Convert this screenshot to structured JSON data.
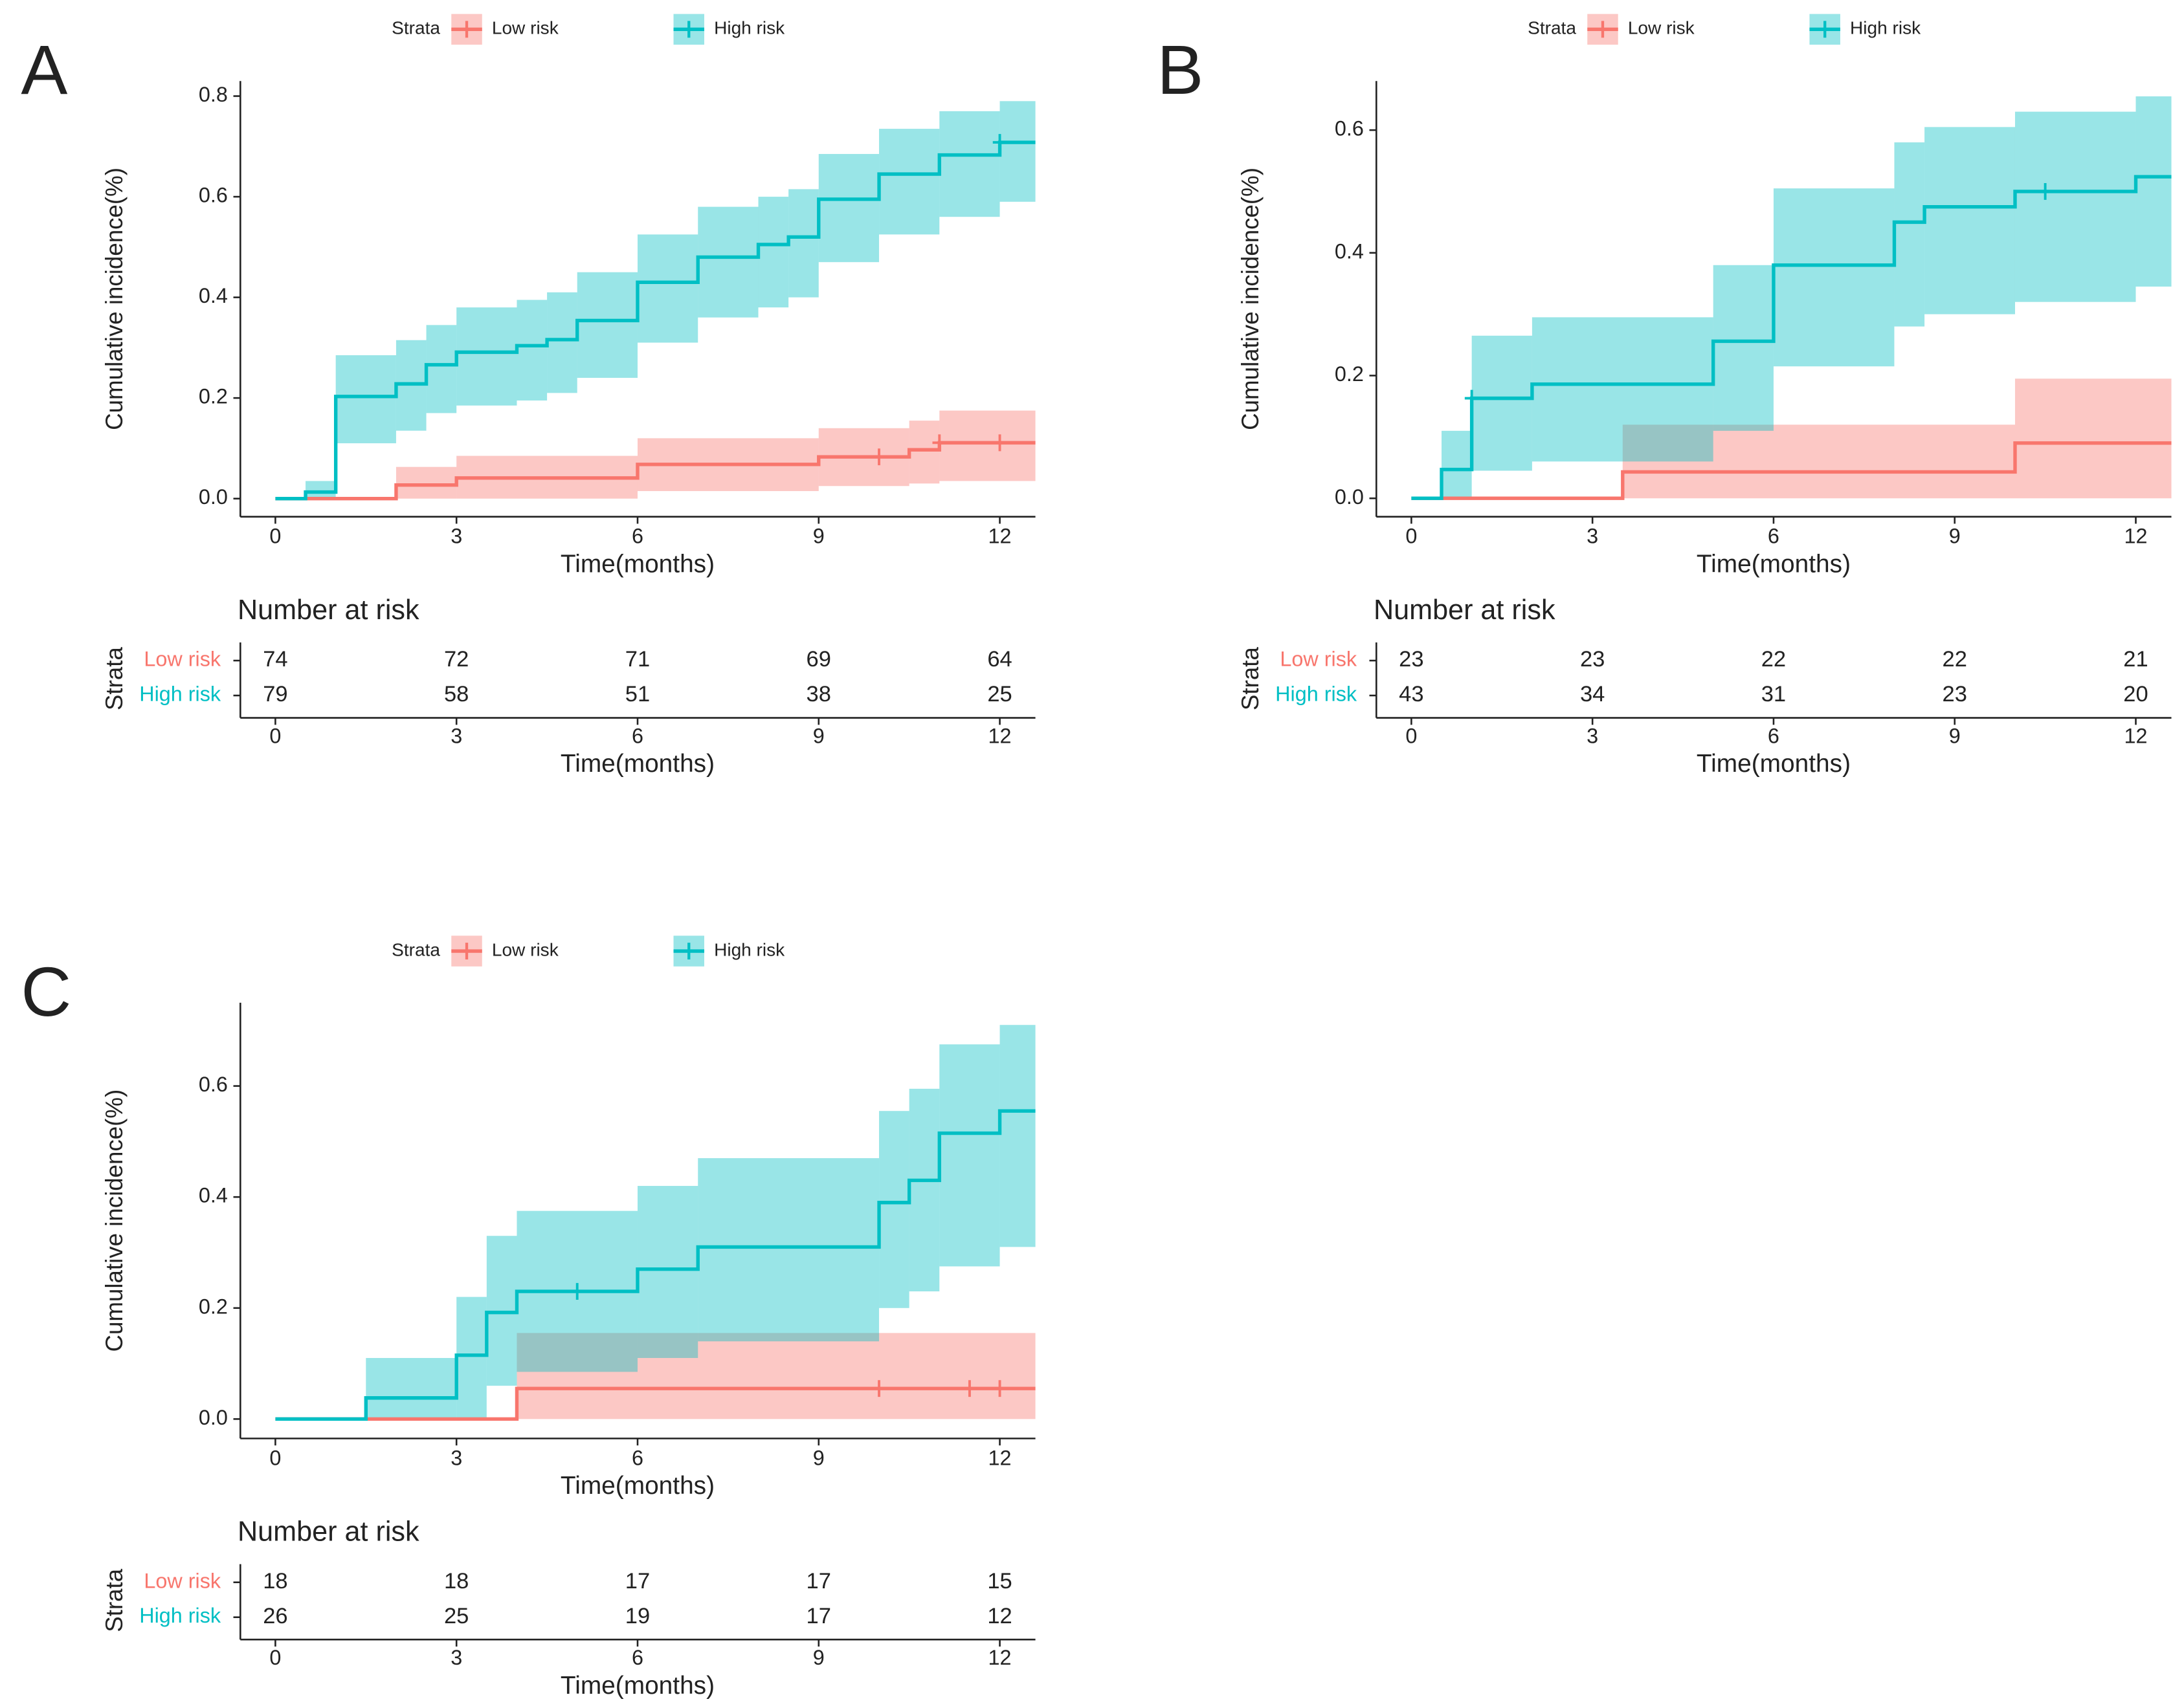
{
  "chart_data": [
    {
      "panel": "A",
      "type": "step",
      "legend_title": "Strata",
      "xlabel": "Time(months)",
      "ylabel": "Cumulative incidence(%)",
      "xlim": [
        -0.58,
        12.59
      ],
      "xticks": [
        0,
        3,
        6,
        9,
        12
      ],
      "ylim": [
        -0.036,
        0.83
      ],
      "yticks": [
        {
          "value": 0,
          "label": "0.0"
        },
        0.2,
        0.4,
        0.6,
        0.8
      ],
      "series": [
        {
          "name": "Low risk",
          "color": "#F8766D",
          "x": [
            0,
            2,
            3,
            6,
            9,
            10.5,
            11
          ],
          "values": [
            0,
            0.027,
            0.041,
            0.068,
            0.083,
            0.097,
            0.111
          ],
          "lower": [
            0,
            0,
            0,
            0.015,
            0.025,
            0.03,
            0.035
          ],
          "upper": [
            0,
            0.063,
            0.085,
            0.12,
            0.14,
            0.155,
            0.175
          ],
          "censor_x": [
            10,
            11,
            12
          ]
        },
        {
          "name": "High risk",
          "color": "#00BFC4",
          "x": [
            0,
            0.5,
            1,
            2,
            2.5,
            3,
            4,
            4.5,
            5,
            6,
            7,
            8,
            8.5,
            9,
            10,
            11,
            12
          ],
          "values": [
            0,
            0.013,
            0.203,
            0.228,
            0.266,
            0.291,
            0.304,
            0.316,
            0.354,
            0.43,
            0.48,
            0.505,
            0.52,
            0.595,
            0.645,
            0.683,
            0.708
          ],
          "lower": [
            0,
            0,
            0.11,
            0.135,
            0.17,
            0.185,
            0.195,
            0.21,
            0.24,
            0.31,
            0.36,
            0.38,
            0.4,
            0.47,
            0.525,
            0.56,
            0.59
          ],
          "upper": [
            0,
            0.035,
            0.285,
            0.315,
            0.345,
            0.38,
            0.395,
            0.41,
            0.45,
            0.525,
            0.58,
            0.6,
            0.615,
            0.685,
            0.735,
            0.77,
            0.79
          ],
          "censor_x": [
            12
          ]
        }
      ],
      "risk_table": {
        "title": "Number at risk",
        "strata_label": "Strata",
        "rows": [
          [
            74,
            72,
            71,
            69,
            64
          ],
          [
            79,
            58,
            51,
            38,
            25
          ]
        ]
      }
    },
    {
      "panel": "B",
      "type": "step",
      "legend_title": "Strata",
      "xlabel": "Time(months)",
      "ylabel": "Cumulative incidence(%)",
      "xlim": [
        -0.58,
        12.59
      ],
      "xticks": [
        0,
        3,
        6,
        9,
        12
      ],
      "ylim": [
        -0.03,
        0.68
      ],
      "yticks": [
        {
          "value": 0,
          "label": "0.0"
        },
        0.2,
        0.4,
        0.6
      ],
      "series": [
        {
          "name": "Low risk",
          "color": "#F8766D",
          "x": [
            0,
            3.5,
            10
          ],
          "values": [
            0,
            0.043,
            0.09
          ],
          "lower": [
            0,
            0,
            0
          ],
          "upper": [
            0,
            0.12,
            0.195
          ],
          "censor_x": []
        },
        {
          "name": "High risk",
          "color": "#00BFC4",
          "x": [
            0,
            0.5,
            1,
            2,
            5,
            6,
            8,
            8.5,
            10,
            12
          ],
          "values": [
            0,
            0.047,
            0.163,
            0.186,
            0.256,
            0.38,
            0.45,
            0.475,
            0.5,
            0.524
          ],
          "lower": [
            0,
            0,
            0.045,
            0.06,
            0.11,
            0.215,
            0.28,
            0.3,
            0.32,
            0.345
          ],
          "upper": [
            0,
            0.11,
            0.265,
            0.295,
            0.38,
            0.505,
            0.58,
            0.605,
            0.63,
            0.655
          ],
          "censor_x": [
            1,
            10.5
          ]
        }
      ],
      "risk_table": {
        "title": "Number at risk",
        "strata_label": "Strata",
        "rows": [
          [
            23,
            23,
            22,
            22,
            21
          ],
          [
            43,
            34,
            31,
            23,
            20
          ]
        ]
      }
    },
    {
      "panel": "C",
      "type": "step",
      "legend_title": "Strata",
      "xlabel": "Time(months)",
      "ylabel": "Cumulative incidence(%)",
      "xlim": [
        -0.58,
        12.59
      ],
      "xticks": [
        0,
        3,
        6,
        9,
        12
      ],
      "ylim": [
        -0.035,
        0.75
      ],
      "yticks": [
        {
          "value": 0,
          "label": "0.0"
        },
        0.2,
        0.4,
        0.6
      ],
      "series": [
        {
          "name": "Low risk",
          "color": "#F8766D",
          "x": [
            0,
            4
          ],
          "values": [
            0,
            0.055
          ],
          "lower": [
            0,
            0
          ],
          "upper": [
            0,
            0.155
          ],
          "censor_x": [
            10,
            11.5,
            12
          ]
        },
        {
          "name": "High risk",
          "color": "#00BFC4",
          "x": [
            0,
            1.5,
            3,
            3.5,
            4,
            6,
            7,
            10,
            10.5,
            11,
            12
          ],
          "values": [
            0,
            0.038,
            0.115,
            0.192,
            0.23,
            0.27,
            0.31,
            0.39,
            0.43,
            0.515,
            0.555
          ],
          "lower": [
            0,
            0,
            0,
            0.06,
            0.085,
            0.11,
            0.14,
            0.2,
            0.23,
            0.275,
            0.31
          ],
          "upper": [
            0,
            0.11,
            0.22,
            0.33,
            0.375,
            0.42,
            0.47,
            0.555,
            0.595,
            0.675,
            0.71
          ],
          "censor_x": [
            5
          ]
        }
      ],
      "risk_table": {
        "title": "Number at risk",
        "strata_label": "Strata",
        "rows": [
          [
            18,
            18,
            17,
            17,
            15
          ],
          [
            26,
            25,
            19,
            17,
            12
          ]
        ]
      }
    }
  ]
}
